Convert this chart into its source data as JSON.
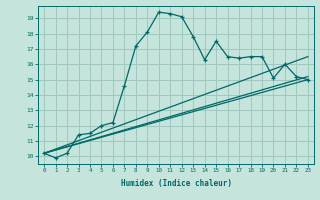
{
  "xlabel": "Humidex (Indice chaleur)",
  "bg_color": "#c4e4dc",
  "grid_color": "#a0c8be",
  "line_color": "#006868",
  "xlim": [
    -0.5,
    23.5
  ],
  "ylim": [
    9.5,
    19.8
  ],
  "xticks": [
    0,
    1,
    2,
    3,
    4,
    5,
    6,
    7,
    8,
    9,
    10,
    11,
    12,
    13,
    14,
    15,
    16,
    17,
    18,
    19,
    20,
    21,
    22,
    23
  ],
  "yticks": [
    10,
    11,
    12,
    13,
    14,
    15,
    16,
    17,
    18,
    19
  ],
  "main_x": [
    0,
    1,
    2,
    3,
    4,
    5,
    6,
    7,
    8,
    9,
    10,
    11,
    12,
    13,
    14,
    15,
    16,
    17,
    18,
    19,
    20,
    21,
    22,
    23
  ],
  "main_y": [
    10.2,
    9.9,
    10.2,
    11.4,
    11.5,
    12.0,
    12.2,
    14.6,
    17.2,
    18.1,
    19.4,
    19.3,
    19.1,
    17.8,
    16.3,
    17.5,
    16.5,
    16.4,
    16.5,
    16.5,
    15.1,
    16.0,
    15.2,
    15.0
  ],
  "line2_x": [
    0,
    23
  ],
  "line2_y": [
    10.2,
    15.0
  ],
  "line3_x": [
    0,
    23
  ],
  "line3_y": [
    10.2,
    15.2
  ],
  "line4_x": [
    0,
    23
  ],
  "line4_y": [
    10.2,
    16.5
  ]
}
